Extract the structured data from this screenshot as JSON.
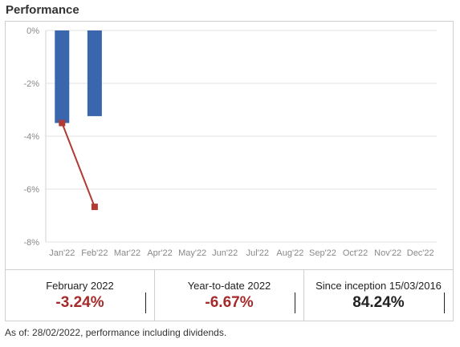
{
  "header": {
    "title": "Performance"
  },
  "chart_data": {
    "type": "bar",
    "categories": [
      "Jan'22",
      "Feb'22",
      "Mar'22",
      "Apr'22",
      "May'22",
      "Jun'22",
      "Jul'22",
      "Aug'22",
      "Sep'22",
      "Oct'22",
      "Nov'22",
      "Dec'22"
    ],
    "series": [
      {
        "type": "bar",
        "values": [
          -3.5,
          -3.24,
          null,
          null,
          null,
          null,
          null,
          null,
          null,
          null,
          null,
          null
        ],
        "color": "#3a66ad"
      },
      {
        "type": "line",
        "values": [
          -3.5,
          -6.67,
          null,
          null,
          null,
          null,
          null,
          null,
          null,
          null,
          null,
          null
        ],
        "color": "#b03a34"
      }
    ],
    "yticks": [
      0,
      -2,
      -4,
      -6,
      -8
    ],
    "ytick_labels": [
      "0%",
      "-2%",
      "-4%",
      "-6%",
      "-8%"
    ],
    "ylim": [
      -8,
      0
    ],
    "grid": true
  },
  "stats": [
    {
      "label": "February 2022",
      "value": "-3.24%",
      "tone": "neg"
    },
    {
      "label": "Year-to-date 2022",
      "value": "-6.67%",
      "tone": "neg"
    },
    {
      "label": "Since inception 15/03/2016",
      "value": "84.24%",
      "tone": "pos"
    }
  ],
  "footnote": "As of: 28/02/2022, performance including dividends."
}
